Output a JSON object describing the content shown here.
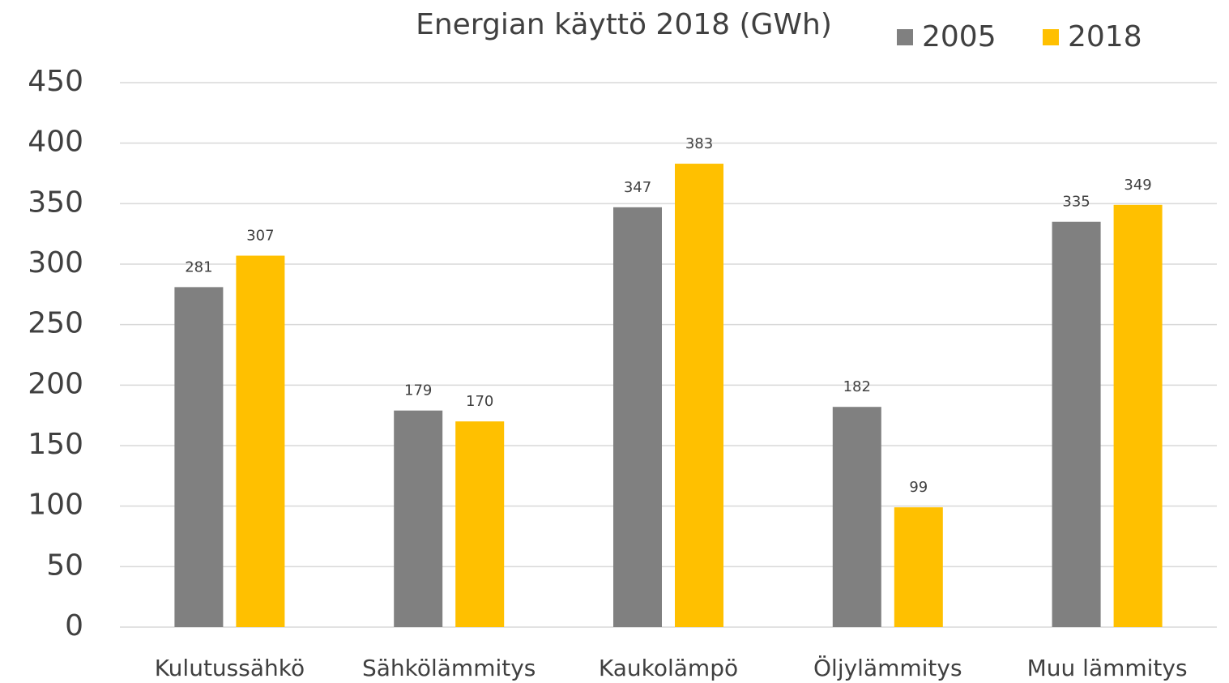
{
  "chart_data": {
    "type": "bar",
    "title": "Energian käyttö 2018 (GWh)",
    "categories": [
      "Kulutussähkö",
      "Sähkölämmitys",
      "Kaukolämpö",
      "Öljylämmitys",
      "Muu lämmitys"
    ],
    "series": [
      {
        "name": "2005",
        "color": "#808080",
        "values": [
          281,
          179,
          347,
          182,
          335
        ]
      },
      {
        "name": "2018",
        "color": "#ffc000",
        "values": [
          307,
          170,
          383,
          99,
          349
        ]
      }
    ],
    "ylim": [
      0,
      450
    ],
    "yticks": [
      0,
      50,
      100,
      150,
      200,
      250,
      300,
      350,
      400,
      450
    ],
    "grid": true
  }
}
